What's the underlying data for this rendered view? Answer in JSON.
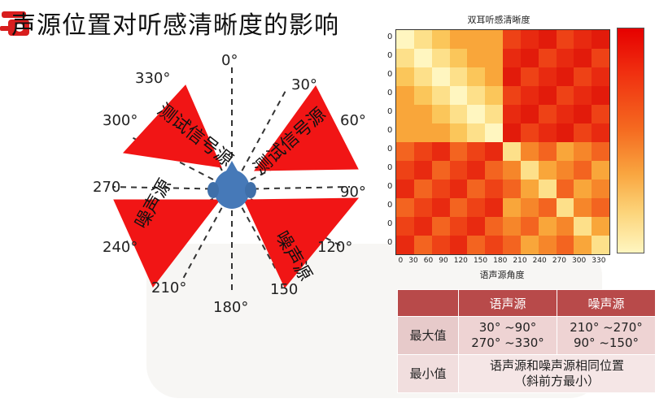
{
  "slide": {
    "title": "声源位置对听感清晰度的影响"
  },
  "diagram": {
    "angles": [
      "0°",
      "30°",
      "60°",
      "90°",
      "120°",
      "150",
      "180°",
      "210°",
      "240°",
      "270",
      "300°",
      "330°"
    ],
    "test_source_label_left": "测试信号源",
    "test_source_label_right": "测试信号源",
    "noise_source_label_left": "噪声源",
    "noise_source_label_right": "噪声源"
  },
  "heatmap": {
    "title": "双耳听感清晰度",
    "xlabel": "语声源角度",
    "xticks": [
      "0",
      "30",
      "60",
      "90",
      "120",
      "150",
      "180",
      "210",
      "240",
      "270",
      "300",
      "330"
    ],
    "yticks": [
      "0",
      "0",
      "0",
      "0",
      "0",
      "0",
      "0",
      "0",
      "0",
      "0",
      "0",
      "0"
    ],
    "colors": {
      "high": "#e60000",
      "low": "#fff6c0"
    }
  },
  "table": {
    "headers": [
      "",
      "语声源",
      "噪声源"
    ],
    "rows": [
      {
        "label": "最大值",
        "speech": [
          "30° ~90°",
          "270° ~330°"
        ],
        "noise": [
          "210° ~270°",
          "90° ~150°"
        ]
      },
      {
        "label": "最小值",
        "combined": [
          "语声源和噪声源相同位置",
          "（斜前方最小）"
        ]
      }
    ]
  }
}
